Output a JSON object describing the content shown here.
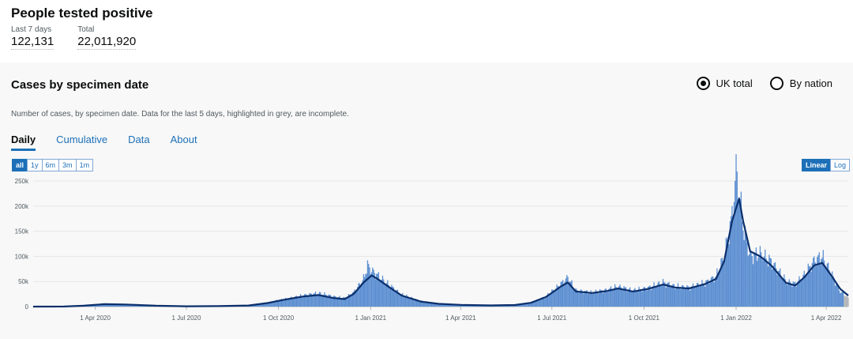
{
  "headline": {
    "title": "People tested positive",
    "metrics": [
      {
        "label": "Last 7 days",
        "value": "122,131"
      },
      {
        "label": "Total",
        "value": "22,011,920"
      }
    ]
  },
  "card": {
    "title": "Cases by specimen date",
    "description": "Number of cases, by specimen date. Data for the last 5 days, highlighted in grey, are incomplete.",
    "radios": [
      {
        "label": "UK total",
        "selected": true
      },
      {
        "label": "By nation",
        "selected": false
      }
    ],
    "tabs": [
      "Daily",
      "Cumulative",
      "Data",
      "About"
    ],
    "active_tab": "Daily",
    "range_buttons": [
      "all",
      "1y",
      "6m",
      "3m",
      "1m"
    ],
    "active_range": "all",
    "scale_buttons": [
      "Linear",
      "Log"
    ],
    "active_scale": "Linear"
  },
  "colors": {
    "bar": "#5b8ed1",
    "bar_incomplete": "#b1b4b6",
    "line": "#0b2f6b",
    "accent": "#1d70b8"
  },
  "chart_data": {
    "type": "bar",
    "title": "",
    "xlabel": "",
    "ylabel": "",
    "ylim": [
      0,
      250000
    ],
    "yticks": [
      0,
      50000,
      100000,
      150000,
      200000,
      250000
    ],
    "ytick_labels": [
      "0",
      "50k",
      "100k",
      "150k",
      "200k",
      "250k"
    ],
    "xticks": [
      "2020-04-01",
      "2020-07-01",
      "2020-10-01",
      "2021-01-01",
      "2021-04-01",
      "2021-07-01",
      "2021-10-01",
      "2022-01-01",
      "2022-04-01"
    ],
    "xtick_labels": [
      "1 Apr 2020",
      "1 Jul 2020",
      "1 Oct 2020",
      "1 Jan 2021",
      "1 Apr 2021",
      "1 Jul 2021",
      "1 Oct 2021",
      "1 Jan 2022",
      "1 Apr 2022"
    ],
    "xlim": [
      "2020-01-30",
      "2022-04-23"
    ],
    "incomplete_last_days": 5,
    "series": [
      {
        "kind": "bars",
        "points": [
          [
            "2020-01-30",
            0
          ],
          [
            "2020-03-01",
            200
          ],
          [
            "2020-03-20",
            2000
          ],
          [
            "2020-04-10",
            5200
          ],
          [
            "2020-05-01",
            4500
          ],
          [
            "2020-06-01",
            2000
          ],
          [
            "2020-07-01",
            800
          ],
          [
            "2020-08-01",
            1000
          ],
          [
            "2020-09-01",
            2500
          ],
          [
            "2020-09-20",
            8000
          ],
          [
            "2020-10-05",
            14000
          ],
          [
            "2020-10-25",
            22000
          ],
          [
            "2020-11-10",
            27000
          ],
          [
            "2020-11-25",
            20000
          ],
          [
            "2020-12-06",
            17000
          ],
          [
            "2020-12-15",
            28000
          ],
          [
            "2020-12-25",
            55000
          ],
          [
            "2020-12-29",
            82000
          ],
          [
            "2021-01-02",
            72000
          ],
          [
            "2021-01-08",
            62000
          ],
          [
            "2021-01-20",
            42000
          ],
          [
            "2021-02-01",
            24000
          ],
          [
            "2021-02-20",
            11000
          ],
          [
            "2021-03-10",
            5800
          ],
          [
            "2021-04-01",
            4000
          ],
          [
            "2021-05-01",
            2500
          ],
          [
            "2021-05-25",
            3500
          ],
          [
            "2021-06-10",
            8000
          ],
          [
            "2021-06-25",
            20000
          ],
          [
            "2021-07-10",
            45000
          ],
          [
            "2021-07-17",
            58000
          ],
          [
            "2021-07-25",
            32000
          ],
          [
            "2021-08-10",
            28000
          ],
          [
            "2021-08-25",
            33000
          ],
          [
            "2021-09-05",
            40000
          ],
          [
            "2021-09-20",
            32000
          ],
          [
            "2021-10-05",
            37000
          ],
          [
            "2021-10-20",
            48000
          ],
          [
            "2021-11-01",
            40000
          ],
          [
            "2021-11-15",
            38000
          ],
          [
            "2021-12-01",
            47000
          ],
          [
            "2021-12-12",
            60000
          ],
          [
            "2021-12-20",
            100000
          ],
          [
            "2021-12-28",
            180000
          ],
          [
            "2022-01-01",
            270000
          ],
          [
            "2022-01-04",
            230000
          ],
          [
            "2022-01-08",
            160000
          ],
          [
            "2022-01-15",
            100000
          ],
          [
            "2022-01-25",
            105000
          ],
          [
            "2022-02-05",
            90000
          ],
          [
            "2022-02-20",
            50000
          ],
          [
            "2022-03-01",
            45000
          ],
          [
            "2022-03-10",
            62000
          ],
          [
            "2022-03-20",
            92000
          ],
          [
            "2022-03-28",
            100000
          ],
          [
            "2022-04-05",
            70000
          ],
          [
            "2022-04-15",
            30000
          ],
          [
            "2022-04-23",
            18000
          ]
        ]
      },
      {
        "kind": "line",
        "points": [
          [
            "2020-01-30",
            0
          ],
          [
            "2020-03-01",
            200
          ],
          [
            "2020-03-20",
            1800
          ],
          [
            "2020-04-10",
            4800
          ],
          [
            "2020-05-01",
            4200
          ],
          [
            "2020-06-01",
            1800
          ],
          [
            "2020-07-01",
            700
          ],
          [
            "2020-08-01",
            900
          ],
          [
            "2020-09-01",
            2200
          ],
          [
            "2020-09-20",
            7000
          ],
          [
            "2020-10-05",
            13000
          ],
          [
            "2020-10-25",
            20000
          ],
          [
            "2020-11-10",
            23000
          ],
          [
            "2020-11-25",
            17000
          ],
          [
            "2020-12-06",
            15000
          ],
          [
            "2020-12-15",
            25000
          ],
          [
            "2020-12-25",
            48000
          ],
          [
            "2021-01-02",
            62000
          ],
          [
            "2021-01-08",
            55000
          ],
          [
            "2021-01-20",
            38000
          ],
          [
            "2021-02-01",
            22000
          ],
          [
            "2021-02-20",
            10000
          ],
          [
            "2021-03-10",
            5500
          ],
          [
            "2021-04-01",
            3500
          ],
          [
            "2021-05-01",
            2300
          ],
          [
            "2021-05-25",
            3200
          ],
          [
            "2021-06-10",
            7500
          ],
          [
            "2021-06-25",
            19000
          ],
          [
            "2021-07-10",
            40000
          ],
          [
            "2021-07-17",
            48000
          ],
          [
            "2021-07-25",
            30000
          ],
          [
            "2021-08-10",
            27000
          ],
          [
            "2021-08-25",
            31000
          ],
          [
            "2021-09-05",
            36000
          ],
          [
            "2021-09-20",
            30000
          ],
          [
            "2021-10-05",
            35000
          ],
          [
            "2021-10-20",
            44000
          ],
          [
            "2021-11-01",
            38000
          ],
          [
            "2021-11-15",
            36000
          ],
          [
            "2021-12-01",
            45000
          ],
          [
            "2021-12-12",
            55000
          ],
          [
            "2021-12-20",
            90000
          ],
          [
            "2021-12-28",
            170000
          ],
          [
            "2022-01-04",
            215000
          ],
          [
            "2022-01-08",
            170000
          ],
          [
            "2022-01-15",
            110000
          ],
          [
            "2022-01-25",
            100000
          ],
          [
            "2022-02-05",
            82000
          ],
          [
            "2022-02-20",
            47000
          ],
          [
            "2022-03-01",
            42000
          ],
          [
            "2022-03-10",
            58000
          ],
          [
            "2022-03-20",
            82000
          ],
          [
            "2022-03-28",
            87000
          ],
          [
            "2022-04-05",
            65000
          ],
          [
            "2022-04-15",
            35000
          ],
          [
            "2022-04-23",
            22000
          ]
        ]
      }
    ]
  }
}
